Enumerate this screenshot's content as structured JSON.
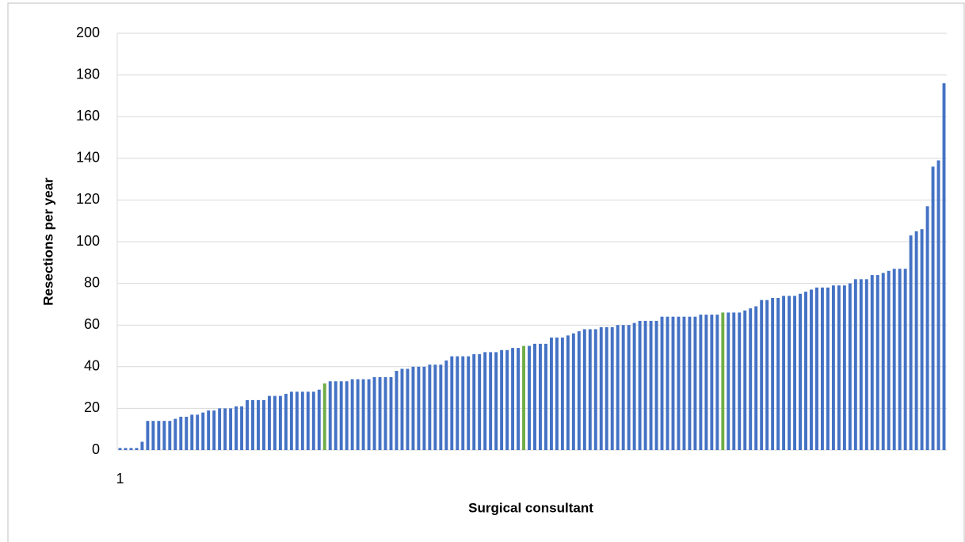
{
  "chart_data": {
    "type": "bar",
    "x_label": "Surgical consultant",
    "y_label": "Resections per year",
    "categories": [
      "1",
      null,
      null,
      null,
      null,
      null,
      null,
      null,
      null,
      null,
      null,
      null,
      null,
      null,
      null,
      null,
      null,
      null,
      null,
      null,
      null,
      null,
      null,
      null,
      null,
      null,
      null,
      null,
      null,
      null,
      null,
      null,
      null,
      null,
      null,
      null,
      null,
      null,
      null,
      null,
      null,
      null,
      null,
      null,
      null,
      null,
      null,
      null,
      null,
      null,
      null,
      null,
      null,
      null,
      null,
      null,
      null,
      null,
      null,
      null,
      null,
      null,
      null,
      null,
      null,
      null,
      null,
      null,
      null,
      null,
      null,
      null,
      null,
      null,
      null,
      null,
      null,
      null,
      null,
      null,
      null,
      null,
      null,
      null,
      null,
      null,
      null,
      null,
      null,
      null,
      null,
      null,
      null,
      null,
      null,
      null,
      null,
      null,
      null,
      null,
      null,
      null,
      null,
      null,
      null,
      null,
      null,
      null,
      null,
      null,
      null,
      null,
      null,
      null,
      null,
      null,
      null,
      null,
      null,
      null,
      null,
      null,
      null,
      null,
      null,
      null,
      null,
      null,
      null,
      null,
      null,
      null,
      null,
      null,
      null,
      null,
      null,
      null,
      null,
      null,
      null,
      null,
      null,
      null,
      null,
      null,
      null,
      null,
      null,
      null
    ],
    "values": [
      1,
      1,
      1,
      1,
      4,
      14,
      14,
      14,
      14,
      14,
      15,
      16,
      16,
      17,
      17,
      18,
      19,
      19,
      20,
      20,
      20,
      21,
      21,
      24,
      24,
      24,
      24,
      26,
      26,
      26,
      27,
      28,
      28,
      28,
      28,
      28,
      29,
      32,
      33,
      33,
      33,
      33,
      34,
      34,
      34,
      34,
      35,
      35,
      35,
      35,
      38,
      39,
      39,
      40,
      40,
      40,
      41,
      41,
      41,
      43,
      45,
      45,
      45,
      45,
      46,
      46,
      47,
      47,
      47,
      48,
      48,
      49,
      49,
      50,
      50,
      51,
      51,
      51,
      54,
      54,
      54,
      55,
      56,
      57,
      58,
      58,
      58,
      59,
      59,
      59,
      60,
      60,
      60,
      61,
      62,
      62,
      62,
      62,
      64,
      64,
      64,
      64,
      64,
      64,
      64,
      65,
      65,
      65,
      65,
      66,
      66,
      66,
      66,
      67,
      68,
      69,
      72,
      72,
      73,
      73,
      74,
      74,
      74,
      75,
      76,
      77,
      78,
      78,
      78,
      79,
      79,
      79,
      80,
      82,
      82,
      82,
      84,
      84,
      85,
      86,
      87,
      87,
      87,
      103,
      105,
      106,
      117,
      136,
      139,
      176
    ],
    "color": "#4472c4",
    "highlight_indices": [
      37,
      73,
      109
    ],
    "highlight_color": "#70ad47",
    "ylim": [
      0,
      200
    ],
    "yticks": [
      0,
      20,
      40,
      60,
      80,
      100,
      120,
      140,
      160,
      180,
      200
    ],
    "grid": true
  }
}
